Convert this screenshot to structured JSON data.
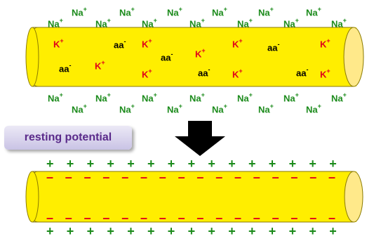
{
  "labels": {
    "na": "Na",
    "k": "K",
    "aa": "aa",
    "plus": "+",
    "minus": "-",
    "plus_glyph": "+",
    "minus_glyph": "–"
  },
  "resting_potential": "resting potential",
  "colors": {
    "na": "#1a8a1a",
    "k": "#e0001a",
    "aa": "#000000",
    "axon_fill": "#ffee00",
    "axon_end": "#ffe98a",
    "arrow": "#000000",
    "plus": "#1a8a1a",
    "minus": "#e0001a"
  }
}
